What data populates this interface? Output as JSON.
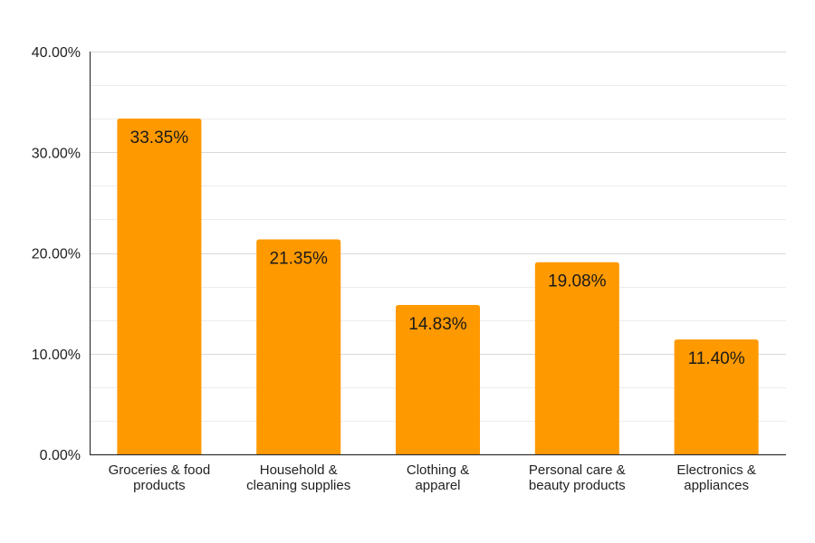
{
  "chart_data": {
    "type": "bar",
    "categories": [
      [
        "Groceries & food",
        "products"
      ],
      [
        "Household &",
        "cleaning supplies"
      ],
      [
        "Clothing &",
        "apparel"
      ],
      [
        "Personal care &",
        "beauty products"
      ],
      [
        "Electronics &",
        "appliances"
      ]
    ],
    "values": [
      33.35,
      21.35,
      14.83,
      19.08,
      11.4
    ],
    "data_labels": [
      "33.35%",
      "21.35%",
      "14.83%",
      "19.08%",
      "11.40%"
    ],
    "y_ticks": [
      0,
      10,
      20,
      30,
      40
    ],
    "y_tick_labels": [
      "0.00%",
      "10.00%",
      "20.00%",
      "30.00%",
      "40.00%"
    ],
    "ylim": [
      0,
      40
    ],
    "minor_gridline_step": 3.333,
    "grid": true,
    "legend": "none",
    "title": "",
    "xlabel": "",
    "ylabel": "",
    "colors": {
      "bar": "#ff9900",
      "gridline": "#d9d9d9",
      "axis": "#333333",
      "text": "#222222"
    }
  }
}
